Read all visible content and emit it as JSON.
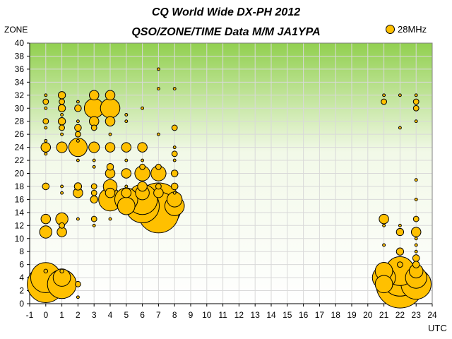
{
  "chart_data": {
    "type": "scatter",
    "title": "CQ World Wide DX-PH 2012",
    "subtitle": "QSO/ZONE/TIME Data M/M JA1YPA",
    "xlabel": "UTC",
    "ylabel": "ZONE",
    "xlim": [
      -1,
      24
    ],
    "ylim": [
      0,
      40
    ],
    "x_ticks": [
      -1,
      0,
      1,
      2,
      3,
      4,
      5,
      6,
      7,
      8,
      9,
      10,
      11,
      12,
      13,
      14,
      15,
      16,
      17,
      18,
      19,
      20,
      21,
      22,
      23,
      24
    ],
    "y_ticks": [
      0,
      2,
      4,
      6,
      8,
      10,
      12,
      14,
      16,
      18,
      20,
      22,
      24,
      26,
      28,
      30,
      32,
      34,
      36,
      38,
      40
    ],
    "grid": true,
    "legend_position": "top-right",
    "colors": {
      "marker": "#ffc000",
      "marker_edge": "#000000",
      "grid": "#d9d9d9"
    },
    "series": [
      {
        "name": "28MHz",
        "points": [
          {
            "x": 0,
            "y": 32,
            "size": 1
          },
          {
            "x": 0,
            "y": 31,
            "size": 4
          },
          {
            "x": 0,
            "y": 30,
            "size": 1
          },
          {
            "x": 0,
            "y": 28,
            "size": 4
          },
          {
            "x": 0,
            "y": 27,
            "size": 1
          },
          {
            "x": 0,
            "y": 25,
            "size": 1
          },
          {
            "x": 0,
            "y": 24,
            "size": 12
          },
          {
            "x": 0,
            "y": 23,
            "size": 1
          },
          {
            "x": 0,
            "y": 18,
            "size": 6
          },
          {
            "x": 0,
            "y": 13,
            "size": 12
          },
          {
            "x": 0,
            "y": 11,
            "size": 20
          },
          {
            "x": 0,
            "y": 5,
            "size": 2
          },
          {
            "x": 0,
            "y": 4,
            "size": 120
          },
          {
            "x": 0,
            "y": 3,
            "size": 180
          },
          {
            "x": 1,
            "y": 32,
            "size": 7
          },
          {
            "x": 1,
            "y": 31,
            "size": 4
          },
          {
            "x": 1,
            "y": 30,
            "size": 7
          },
          {
            "x": 1,
            "y": 29,
            "size": 1
          },
          {
            "x": 1,
            "y": 28,
            "size": 7
          },
          {
            "x": 1,
            "y": 27,
            "size": 4
          },
          {
            "x": 1,
            "y": 26,
            "size": 1
          },
          {
            "x": 1,
            "y": 24,
            "size": 15
          },
          {
            "x": 1,
            "y": 18,
            "size": 1
          },
          {
            "x": 1,
            "y": 17,
            "size": 1
          },
          {
            "x": 1,
            "y": 13,
            "size": 20
          },
          {
            "x": 1,
            "y": 12,
            "size": 4
          },
          {
            "x": 1,
            "y": 11,
            "size": 12
          },
          {
            "x": 1,
            "y": 5,
            "size": 2
          },
          {
            "x": 1,
            "y": 4,
            "size": 40
          },
          {
            "x": 1,
            "y": 3,
            "size": 110
          },
          {
            "x": 2,
            "y": 31,
            "size": 1
          },
          {
            "x": 2,
            "y": 30,
            "size": 6
          },
          {
            "x": 2,
            "y": 28,
            "size": 1
          },
          {
            "x": 2,
            "y": 27,
            "size": 6
          },
          {
            "x": 2,
            "y": 26,
            "size": 4
          },
          {
            "x": 2,
            "y": 25,
            "size": 1
          },
          {
            "x": 2,
            "y": 24,
            "size": 45
          },
          {
            "x": 2,
            "y": 22,
            "size": 1
          },
          {
            "x": 2,
            "y": 18,
            "size": 7
          },
          {
            "x": 2,
            "y": 17,
            "size": 12
          },
          {
            "x": 2,
            "y": 13,
            "size": 1
          },
          {
            "x": 2,
            "y": 3,
            "size": 4
          },
          {
            "x": 2,
            "y": 1,
            "size": 1
          },
          {
            "x": 3,
            "y": 32,
            "size": 12
          },
          {
            "x": 3,
            "y": 30,
            "size": 50
          },
          {
            "x": 3,
            "y": 28,
            "size": 12
          },
          {
            "x": 3,
            "y": 27,
            "size": 4
          },
          {
            "x": 3,
            "y": 24,
            "size": 15
          },
          {
            "x": 3,
            "y": 22,
            "size": 1
          },
          {
            "x": 3,
            "y": 21,
            "size": 1
          },
          {
            "x": 3,
            "y": 18,
            "size": 4
          },
          {
            "x": 3,
            "y": 17,
            "size": 4
          },
          {
            "x": 3,
            "y": 16,
            "size": 7
          },
          {
            "x": 3,
            "y": 13,
            "size": 4
          },
          {
            "x": 3,
            "y": 12,
            "size": 1
          },
          {
            "x": 4,
            "y": 32,
            "size": 12
          },
          {
            "x": 4,
            "y": 30,
            "size": 50
          },
          {
            "x": 4,
            "y": 28,
            "size": 12
          },
          {
            "x": 4,
            "y": 26,
            "size": 1
          },
          {
            "x": 4,
            "y": 24,
            "size": 12
          },
          {
            "x": 4,
            "y": 21,
            "size": 6
          },
          {
            "x": 4,
            "y": 20,
            "size": 12
          },
          {
            "x": 4,
            "y": 18,
            "size": 25
          },
          {
            "x": 4,
            "y": 17,
            "size": 12
          },
          {
            "x": 4,
            "y": 16,
            "size": 70
          },
          {
            "x": 4,
            "y": 13,
            "size": 1
          },
          {
            "x": 5,
            "y": 29,
            "size": 1
          },
          {
            "x": 5,
            "y": 28,
            "size": 1
          },
          {
            "x": 5,
            "y": 24,
            "size": 12
          },
          {
            "x": 5,
            "y": 22,
            "size": 1
          },
          {
            "x": 5,
            "y": 20,
            "size": 12
          },
          {
            "x": 5,
            "y": 18,
            "size": 1
          },
          {
            "x": 5,
            "y": 17,
            "size": 12
          },
          {
            "x": 5,
            "y": 16,
            "size": 70
          },
          {
            "x": 5,
            "y": 15,
            "size": 40
          },
          {
            "x": 6,
            "y": 30,
            "size": 1
          },
          {
            "x": 6,
            "y": 24,
            "size": 12
          },
          {
            "x": 6,
            "y": 22,
            "size": 1
          },
          {
            "x": 6,
            "y": 21,
            "size": 4
          },
          {
            "x": 6,
            "y": 20,
            "size": 30
          },
          {
            "x": 6,
            "y": 18,
            "size": 12
          },
          {
            "x": 6,
            "y": 17,
            "size": 25
          },
          {
            "x": 6,
            "y": 16,
            "size": 120
          },
          {
            "x": 6,
            "y": 15,
            "size": 150
          },
          {
            "x": 7,
            "y": 36,
            "size": 1
          },
          {
            "x": 7,
            "y": 33,
            "size": 1
          },
          {
            "x": 7,
            "y": 26,
            "size": 1
          },
          {
            "x": 7,
            "y": 21,
            "size": 4
          },
          {
            "x": 7,
            "y": 20,
            "size": 30
          },
          {
            "x": 7,
            "y": 18,
            "size": 4
          },
          {
            "x": 7,
            "y": 17,
            "size": 12
          },
          {
            "x": 7,
            "y": 15,
            "size": 280
          },
          {
            "x": 7,
            "y": 14,
            "size": 220
          },
          {
            "x": 8,
            "y": 33,
            "size": 1
          },
          {
            "x": 8,
            "y": 27,
            "size": 4
          },
          {
            "x": 8,
            "y": 24,
            "size": 1
          },
          {
            "x": 8,
            "y": 23,
            "size": 4
          },
          {
            "x": 8,
            "y": 22,
            "size": 1
          },
          {
            "x": 8,
            "y": 20,
            "size": 6
          },
          {
            "x": 8,
            "y": 18,
            "size": 6
          },
          {
            "x": 8,
            "y": 17,
            "size": 1
          },
          {
            "x": 8,
            "y": 16,
            "size": 30
          },
          {
            "x": 8,
            "y": 15,
            "size": 50
          },
          {
            "x": 21,
            "y": 32,
            "size": 1
          },
          {
            "x": 21,
            "y": 31,
            "size": 4
          },
          {
            "x": 21,
            "y": 13,
            "size": 12
          },
          {
            "x": 21,
            "y": 12,
            "size": 1
          },
          {
            "x": 21,
            "y": 9,
            "size": 1
          },
          {
            "x": 21,
            "y": 5,
            "size": 40
          },
          {
            "x": 21,
            "y": 4,
            "size": 70
          },
          {
            "x": 21,
            "y": 3,
            "size": 40
          },
          {
            "x": 22,
            "y": 32,
            "size": 1
          },
          {
            "x": 22,
            "y": 27,
            "size": 1
          },
          {
            "x": 22,
            "y": 12,
            "size": 1
          },
          {
            "x": 22,
            "y": 11,
            "size": 7
          },
          {
            "x": 22,
            "y": 8,
            "size": 7
          },
          {
            "x": 22,
            "y": 6,
            "size": 4
          },
          {
            "x": 22,
            "y": 5,
            "size": 110
          },
          {
            "x": 22,
            "y": 4,
            "size": 180
          },
          {
            "x": 22,
            "y": 3,
            "size": 300
          },
          {
            "x": 23,
            "y": 32,
            "size": 1
          },
          {
            "x": 23,
            "y": 31,
            "size": 4
          },
          {
            "x": 23,
            "y": 30,
            "size": 4
          },
          {
            "x": 23,
            "y": 28,
            "size": 1
          },
          {
            "x": 23,
            "y": 19,
            "size": 1
          },
          {
            "x": 23,
            "y": 16,
            "size": 1
          },
          {
            "x": 23,
            "y": 13,
            "size": 4
          },
          {
            "x": 23,
            "y": 11,
            "size": 12
          },
          {
            "x": 23,
            "y": 10,
            "size": 1
          },
          {
            "x": 23,
            "y": 9,
            "size": 1
          },
          {
            "x": 23,
            "y": 8,
            "size": 1
          },
          {
            "x": 23,
            "y": 7,
            "size": 6
          },
          {
            "x": 23,
            "y": 6,
            "size": 6
          },
          {
            "x": 23,
            "y": 5,
            "size": 25
          },
          {
            "x": 23,
            "y": 4,
            "size": 60
          },
          {
            "x": 23,
            "y": 3,
            "size": 120
          }
        ]
      }
    ]
  }
}
